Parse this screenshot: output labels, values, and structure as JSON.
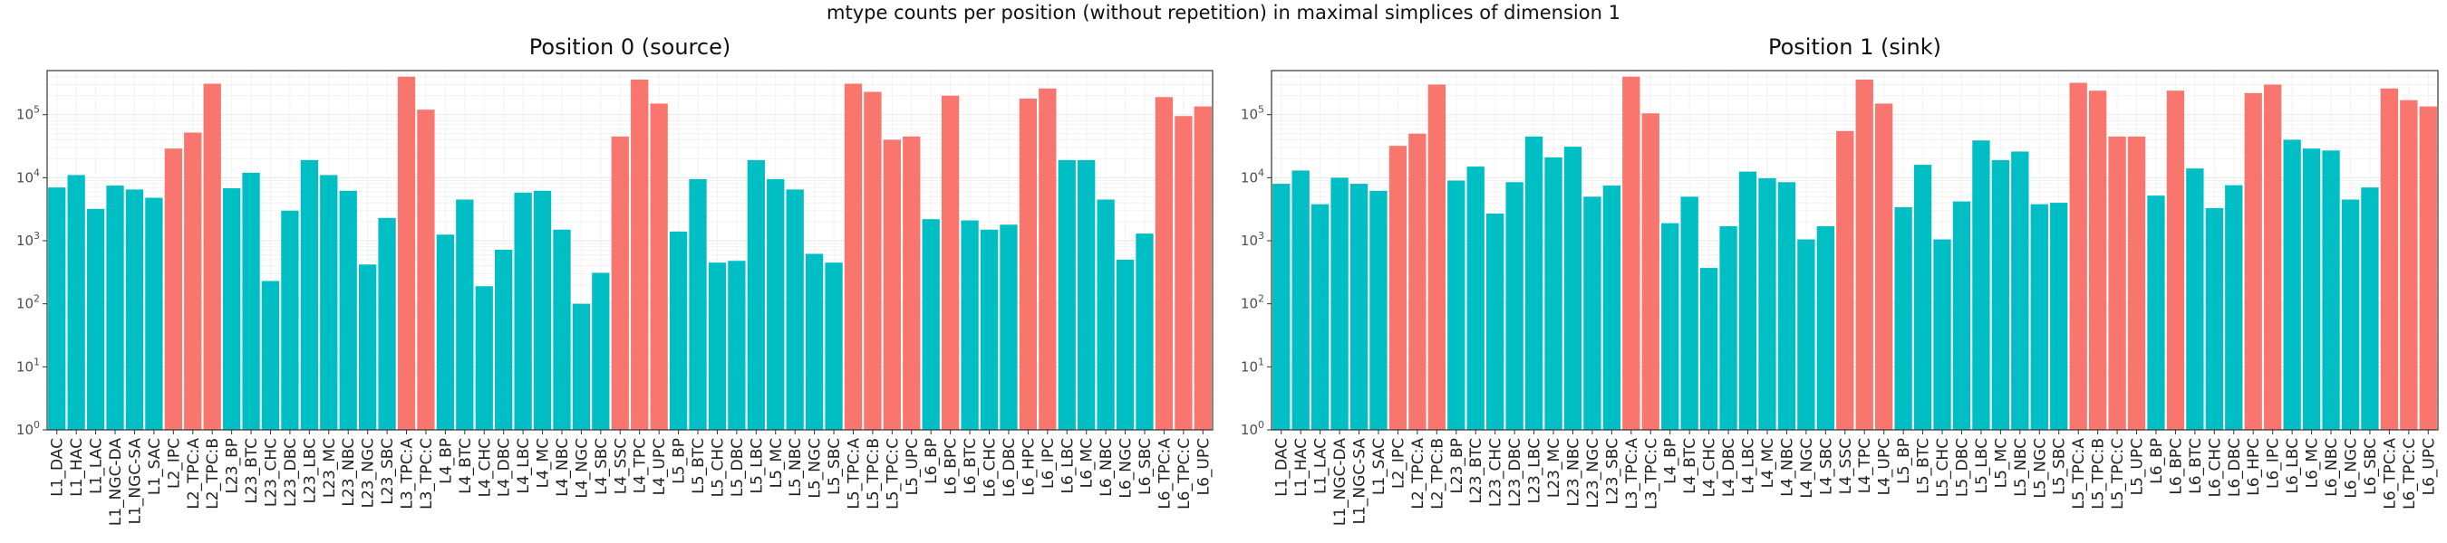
{
  "figure": {
    "title": "mtype counts per position (without repetition) in maximal simplices of dimension 1"
  },
  "colors": {
    "excitatory": "#F8766D",
    "inhibitory": "#00BFC4",
    "panel_bg": "#ffffff",
    "grid": "#ebebeb",
    "border": "#333333"
  },
  "chart_data": [
    {
      "type": "bar",
      "title": "Position 0 (source)",
      "xlabel": "",
      "ylabel": "",
      "yscale": "log10",
      "ylim": [
        1,
        500000
      ],
      "yticks": [
        {
          "value": 1,
          "base": "10",
          "exp": "0"
        },
        {
          "value": 10,
          "base": "10",
          "exp": "1"
        },
        {
          "value": 100,
          "base": "10",
          "exp": "2"
        },
        {
          "value": 1000,
          "base": "10",
          "exp": "3"
        },
        {
          "value": 10000,
          "base": "10",
          "exp": "4"
        },
        {
          "value": 100000,
          "base": "10",
          "exp": "5"
        }
      ],
      "grid": true,
      "categories": [
        "L1_DAC",
        "L1_HAC",
        "L1_LAC",
        "L1_NGC-DA",
        "L1_NGC-SA",
        "L1_SAC",
        "L2_IPC",
        "L2_TPC:A",
        "L2_TPC:B",
        "L23_BP",
        "L23_BTC",
        "L23_CHC",
        "L23_DBC",
        "L23_LBC",
        "L23_MC",
        "L23_NBC",
        "L23_NGC",
        "L23_SBC",
        "L3_TPC:A",
        "L3_TPC:C",
        "L4_BP",
        "L4_BTC",
        "L4_CHC",
        "L4_DBC",
        "L4_LBC",
        "L4_MC",
        "L4_NBC",
        "L4_NGC",
        "L4_SBC",
        "L4_SSC",
        "L4_TPC",
        "L4_UPC",
        "L5_BP",
        "L5_BTC",
        "L5_CHC",
        "L5_DBC",
        "L5_LBC",
        "L5_MC",
        "L5_NBC",
        "L5_NGC",
        "L5_SBC",
        "L5_TPC:A",
        "L5_TPC:B",
        "L5_TPC:C",
        "L5_UPC",
        "L6_BP",
        "L6_BPC",
        "L6_BTC",
        "L6_CHC",
        "L6_DBC",
        "L6_HPC",
        "L6_IPC",
        "L6_LBC",
        "L6_MC",
        "L6_NBC",
        "L6_NGC",
        "L6_SBC",
        "L6_TPC:A",
        "L6_TPC:C",
        "L6_UPC"
      ],
      "excitatory": [
        false,
        false,
        false,
        false,
        false,
        false,
        true,
        true,
        true,
        false,
        false,
        false,
        false,
        false,
        false,
        false,
        false,
        false,
        true,
        true,
        false,
        false,
        false,
        false,
        false,
        false,
        false,
        false,
        false,
        true,
        true,
        true,
        false,
        false,
        false,
        false,
        false,
        false,
        false,
        false,
        false,
        true,
        true,
        true,
        true,
        false,
        true,
        false,
        false,
        false,
        true,
        true,
        false,
        false,
        false,
        false,
        false,
        true,
        true,
        true
      ],
      "values": [
        7000,
        11000,
        3200,
        7500,
        6500,
        4800,
        29000,
        52000,
        310000,
        6800,
        12000,
        230,
        3000,
        19000,
        11000,
        6200,
        420,
        2300,
        400000,
        120000,
        1250,
        4500,
        190,
        720,
        5800,
        6200,
        1500,
        100,
        310,
        45000,
        360000,
        150000,
        1400,
        9500,
        450,
        480,
        19000,
        9500,
        6500,
        620,
        450,
        310000,
        230000,
        40000,
        45000,
        2200,
        200000,
        2100,
        1500,
        1800,
        180000,
        260000,
        19000,
        19000,
        4500,
        500,
        1300,
        190000,
        95000,
        135000
      ]
    },
    {
      "type": "bar",
      "title": "Position 1 (sink)",
      "xlabel": "",
      "ylabel": "",
      "yscale": "log10",
      "ylim": [
        1,
        500000
      ],
      "yticks": [
        {
          "value": 1,
          "base": "10",
          "exp": "0"
        },
        {
          "value": 10,
          "base": "10",
          "exp": "1"
        },
        {
          "value": 100,
          "base": "10",
          "exp": "2"
        },
        {
          "value": 1000,
          "base": "10",
          "exp": "3"
        },
        {
          "value": 10000,
          "base": "10",
          "exp": "4"
        },
        {
          "value": 100000,
          "base": "10",
          "exp": "5"
        }
      ],
      "grid": true,
      "categories": [
        "L1_DAC",
        "L1_HAC",
        "L1_LAC",
        "L1_NGC-DA",
        "L1_NGC-SA",
        "L1_SAC",
        "L2_IPC",
        "L2_TPC:A",
        "L2_TPC:B",
        "L23_BP",
        "L23_BTC",
        "L23_CHC",
        "L23_DBC",
        "L23_LBC",
        "L23_MC",
        "L23_NBC",
        "L23_NGC",
        "L23_SBC",
        "L3_TPC:A",
        "L3_TPC:C",
        "L4_BP",
        "L4_BTC",
        "L4_CHC",
        "L4_DBC",
        "L4_LBC",
        "L4_MC",
        "L4_NBC",
        "L4_NGC",
        "L4_SBC",
        "L4_SSC",
        "L4_TPC",
        "L4_UPC",
        "L5_BP",
        "L5_BTC",
        "L5_CHC",
        "L5_DBC",
        "L5_LBC",
        "L5_MC",
        "L5_NBC",
        "L5_NGC",
        "L5_SBC",
        "L5_TPC:A",
        "L5_TPC:B",
        "L5_TPC:C",
        "L5_UPC",
        "L6_BP",
        "L6_BPC",
        "L6_BTC",
        "L6_CHC",
        "L6_DBC",
        "L6_HPC",
        "L6_IPC",
        "L6_LBC",
        "L6_MC",
        "L6_NBC",
        "L6_NGC",
        "L6_SBC",
        "L6_TPC:A",
        "L6_TPC:C",
        "L6_UPC"
      ],
      "excitatory": [
        false,
        false,
        false,
        false,
        false,
        false,
        true,
        true,
        true,
        false,
        false,
        false,
        false,
        false,
        false,
        false,
        false,
        false,
        true,
        true,
        false,
        false,
        false,
        false,
        false,
        false,
        false,
        false,
        false,
        true,
        true,
        true,
        false,
        false,
        false,
        false,
        false,
        false,
        false,
        false,
        false,
        true,
        true,
        true,
        true,
        false,
        true,
        false,
        false,
        false,
        true,
        true,
        false,
        false,
        false,
        false,
        false,
        true,
        true,
        true
      ],
      "values": [
        8000,
        13000,
        3800,
        10000,
        8000,
        6200,
        32000,
        50000,
        300000,
        9000,
        15000,
        2700,
        8500,
        45000,
        21000,
        31000,
        5000,
        7500,
        400000,
        105000,
        1900,
        5000,
        370,
        1700,
        12500,
        9800,
        8500,
        1050,
        1700,
        55000,
        360000,
        150000,
        3400,
        16000,
        1050,
        4200,
        39000,
        19000,
        26000,
        3800,
        4000,
        320000,
        240000,
        45000,
        45000,
        5200,
        240000,
        14000,
        3300,
        7600,
        220000,
        300000,
        40000,
        29000,
        27000,
        4500,
        7000,
        260000,
        170000,
        135000
      ]
    }
  ]
}
